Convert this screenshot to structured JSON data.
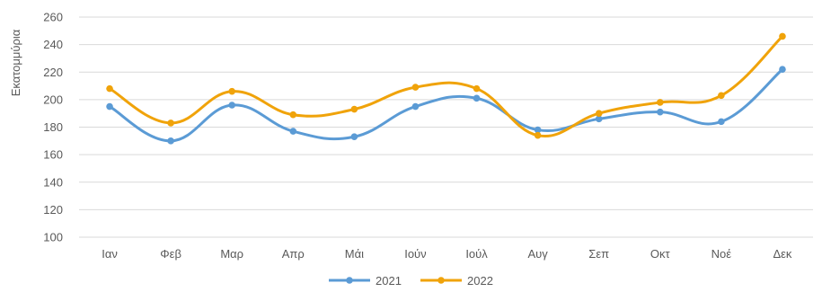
{
  "chart_data": {
    "type": "line",
    "ylabel": "Εκατομμύρια",
    "xlabel": "",
    "title": "",
    "ylim": [
      100,
      260
    ],
    "yticks": [
      100,
      120,
      140,
      160,
      180,
      200,
      220,
      240,
      260
    ],
    "grid": true,
    "legend_position": "bottom-center",
    "categories": [
      "Ιαν",
      "Φεβ",
      "Μαρ",
      "Απρ",
      "Μάι",
      "Ιούν",
      "Ιούλ",
      "Αυγ",
      "Σεπ",
      "Οκτ",
      "Νοέ",
      "Δεκ"
    ],
    "series": [
      {
        "name": "2021",
        "color": "#5B9BD5",
        "values": [
          195,
          170,
          196,
          177,
          173,
          195,
          201,
          178,
          186,
          191,
          184,
          222
        ]
      },
      {
        "name": "2022",
        "color": "#F0A30A",
        "values": [
          208,
          183,
          206,
          189,
          193,
          209,
          208,
          174,
          190,
          198,
          203,
          246
        ]
      }
    ]
  }
}
